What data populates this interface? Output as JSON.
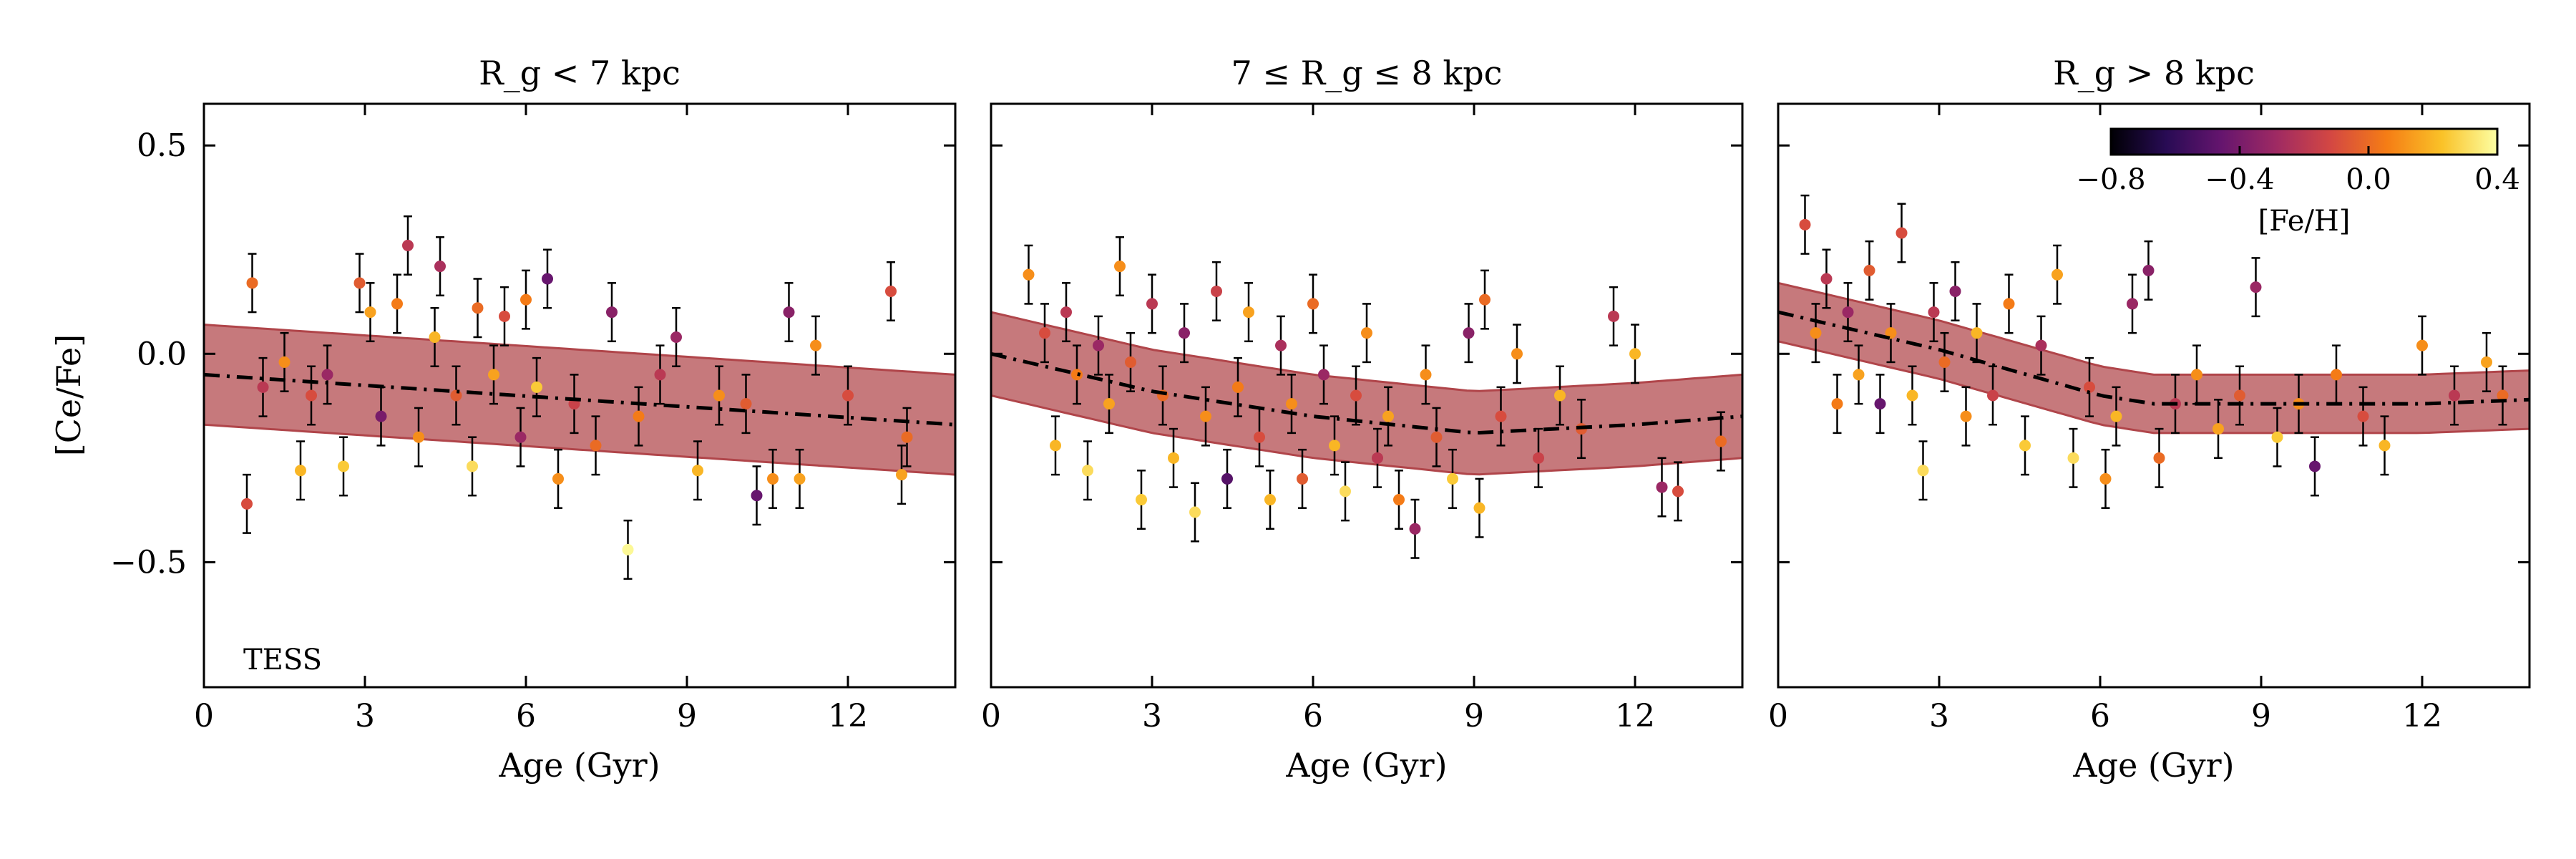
{
  "chart_data": [
    {
      "type": "scatter",
      "title": "R_g < 7 kpc",
      "xlabel": "Age (Gyr)",
      "ylabel": "[Ce/Fe]",
      "xlim": [
        0,
        14
      ],
      "ylim": [
        -0.8,
        0.6
      ],
      "xticks": [
        "0",
        "3",
        "6",
        "9",
        "12"
      ],
      "yticks": [
        "0.5",
        "0.0",
        "−0.5"
      ],
      "annotation": "TESS",
      "trend": {
        "x": [
          0,
          14
        ],
        "y": [
          -0.05,
          -0.17
        ],
        "band_width": 0.12
      },
      "points": [
        {
          "age": 0.8,
          "cefe": -0.36,
          "feh": -0.1
        },
        {
          "age": 0.9,
          "cefe": 0.17,
          "feh": 0.0
        },
        {
          "age": 1.1,
          "cefe": -0.08,
          "feh": -0.2
        },
        {
          "age": 1.5,
          "cefe": -0.02,
          "feh": 0.1
        },
        {
          "age": 1.8,
          "cefe": -0.28,
          "feh": 0.2
        },
        {
          "age": 2.0,
          "cefe": -0.1,
          "feh": -0.1
        },
        {
          "age": 2.3,
          "cefe": -0.05,
          "feh": -0.3
        },
        {
          "age": 2.6,
          "cefe": -0.27,
          "feh": 0.25
        },
        {
          "age": 2.9,
          "cefe": 0.17,
          "feh": -0.05
        },
        {
          "age": 3.1,
          "cefe": 0.1,
          "feh": 0.15
        },
        {
          "age": 3.3,
          "cefe": -0.15,
          "feh": -0.4
        },
        {
          "age": 3.6,
          "cefe": 0.12,
          "feh": 0.05
        },
        {
          "age": 3.8,
          "cefe": 0.26,
          "feh": -0.2
        },
        {
          "age": 4.0,
          "cefe": -0.2,
          "feh": 0.1
        },
        {
          "age": 4.3,
          "cefe": 0.04,
          "feh": 0.2
        },
        {
          "age": 4.4,
          "cefe": 0.21,
          "feh": -0.25
        },
        {
          "age": 4.7,
          "cefe": -0.1,
          "feh": -0.05
        },
        {
          "age": 5.0,
          "cefe": -0.27,
          "feh": 0.3
        },
        {
          "age": 5.1,
          "cefe": 0.11,
          "feh": 0.0
        },
        {
          "age": 5.4,
          "cefe": -0.05,
          "feh": 0.15
        },
        {
          "age": 5.6,
          "cefe": 0.09,
          "feh": -0.1
        },
        {
          "age": 5.9,
          "cefe": -0.2,
          "feh": -0.3
        },
        {
          "age": 6.0,
          "cefe": 0.13,
          "feh": 0.05
        },
        {
          "age": 6.2,
          "cefe": -0.08,
          "feh": 0.25
        },
        {
          "age": 6.4,
          "cefe": 0.18,
          "feh": -0.45
        },
        {
          "age": 6.6,
          "cefe": -0.3,
          "feh": 0.1
        },
        {
          "age": 6.9,
          "cefe": -0.12,
          "feh": -0.15
        },
        {
          "age": 7.3,
          "cefe": -0.22,
          "feh": 0.0
        },
        {
          "age": 7.6,
          "cefe": 0.1,
          "feh": -0.35
        },
        {
          "age": 7.9,
          "cefe": -0.47,
          "feh": 0.38
        },
        {
          "age": 8.1,
          "cefe": -0.15,
          "feh": 0.05
        },
        {
          "age": 8.5,
          "cefe": -0.05,
          "feh": -0.2
        },
        {
          "age": 8.8,
          "cefe": 0.04,
          "feh": -0.3
        },
        {
          "age": 9.2,
          "cefe": -0.28,
          "feh": 0.2
        },
        {
          "age": 9.6,
          "cefe": -0.1,
          "feh": 0.1
        },
        {
          "age": 10.1,
          "cefe": -0.12,
          "feh": -0.05
        },
        {
          "age": 10.3,
          "cefe": -0.34,
          "feh": -0.45
        },
        {
          "age": 10.6,
          "cefe": -0.3,
          "feh": 0.1
        },
        {
          "age": 10.9,
          "cefe": 0.1,
          "feh": -0.35
        },
        {
          "age": 11.1,
          "cefe": -0.3,
          "feh": 0.15
        },
        {
          "age": 11.4,
          "cefe": 0.02,
          "feh": 0.1
        },
        {
          "age": 12.0,
          "cefe": -0.1,
          "feh": -0.1
        },
        {
          "age": 12.8,
          "cefe": 0.15,
          "feh": -0.1
        },
        {
          "age": 13.0,
          "cefe": -0.29,
          "feh": 0.15
        },
        {
          "age": 13.1,
          "cefe": -0.2,
          "feh": 0.0
        }
      ]
    },
    {
      "type": "scatter",
      "title": "7 ≤ R_g ≤ 8 kpc",
      "xlabel": "Age (Gyr)",
      "ylabel": "",
      "xlim": [
        0,
        14
      ],
      "ylim": [
        -0.8,
        0.6
      ],
      "xticks": [
        "0",
        "3",
        "6",
        "9",
        "12"
      ],
      "trend": {
        "x": [
          0,
          3,
          6,
          9,
          12,
          14
        ],
        "y": [
          0.0,
          -0.09,
          -0.15,
          -0.19,
          -0.17,
          -0.15
        ],
        "band_width": 0.1
      },
      "points": [
        {
          "age": 0.7,
          "cefe": 0.19,
          "feh": 0.1
        },
        {
          "age": 1.0,
          "cefe": 0.05,
          "feh": -0.1
        },
        {
          "age": 1.2,
          "cefe": -0.22,
          "feh": 0.2
        },
        {
          "age": 1.4,
          "cefe": 0.1,
          "feh": -0.2
        },
        {
          "age": 1.6,
          "cefe": -0.05,
          "feh": 0.05
        },
        {
          "age": 1.8,
          "cefe": -0.28,
          "feh": 0.3
        },
        {
          "age": 2.0,
          "cefe": 0.02,
          "feh": -0.3
        },
        {
          "age": 2.2,
          "cefe": -0.12,
          "feh": 0.15
        },
        {
          "age": 2.4,
          "cefe": 0.21,
          "feh": 0.1
        },
        {
          "age": 2.6,
          "cefe": -0.02,
          "feh": -0.05
        },
        {
          "age": 2.8,
          "cefe": -0.35,
          "feh": 0.25
        },
        {
          "age": 3.0,
          "cefe": 0.12,
          "feh": -0.2
        },
        {
          "age": 3.2,
          "cefe": -0.1,
          "feh": 0.0
        },
        {
          "age": 3.4,
          "cefe": -0.25,
          "feh": 0.2
        },
        {
          "age": 3.6,
          "cefe": 0.05,
          "feh": -0.35
        },
        {
          "age": 3.8,
          "cefe": -0.38,
          "feh": 0.3
        },
        {
          "age": 4.0,
          "cefe": -0.15,
          "feh": 0.1
        },
        {
          "age": 4.2,
          "cefe": 0.15,
          "feh": -0.15
        },
        {
          "age": 4.4,
          "cefe": -0.3,
          "feh": -0.5
        },
        {
          "age": 4.6,
          "cefe": -0.08,
          "feh": 0.05
        },
        {
          "age": 4.8,
          "cefe": 0.1,
          "feh": 0.15
        },
        {
          "age": 5.0,
          "cefe": -0.2,
          "feh": -0.1
        },
        {
          "age": 5.2,
          "cefe": -0.35,
          "feh": 0.2
        },
        {
          "age": 5.4,
          "cefe": 0.02,
          "feh": -0.25
        },
        {
          "age": 5.6,
          "cefe": -0.12,
          "feh": 0.1
        },
        {
          "age": 5.8,
          "cefe": -0.3,
          "feh": -0.05
        },
        {
          "age": 6.0,
          "cefe": 0.12,
          "feh": 0.0
        },
        {
          "age": 6.2,
          "cefe": -0.05,
          "feh": -0.3
        },
        {
          "age": 6.4,
          "cefe": -0.22,
          "feh": 0.2
        },
        {
          "age": 6.6,
          "cefe": -0.33,
          "feh": 0.3
        },
        {
          "age": 6.8,
          "cefe": -0.1,
          "feh": -0.1
        },
        {
          "age": 7.0,
          "cefe": 0.05,
          "feh": 0.1
        },
        {
          "age": 7.2,
          "cefe": -0.25,
          "feh": -0.2
        },
        {
          "age": 7.4,
          "cefe": -0.15,
          "feh": 0.15
        },
        {
          "age": 7.6,
          "cefe": -0.35,
          "feh": 0.05
        },
        {
          "age": 7.9,
          "cefe": -0.42,
          "feh": -0.3
        },
        {
          "age": 8.1,
          "cefe": -0.05,
          "feh": 0.1
        },
        {
          "age": 8.3,
          "cefe": -0.2,
          "feh": -0.05
        },
        {
          "age": 8.6,
          "cefe": -0.3,
          "feh": 0.25
        },
        {
          "age": 8.9,
          "cefe": 0.05,
          "feh": -0.35
        },
        {
          "age": 9.1,
          "cefe": -0.37,
          "feh": 0.2
        },
        {
          "age": 9.2,
          "cefe": 0.13,
          "feh": 0.0
        },
        {
          "age": 9.5,
          "cefe": -0.15,
          "feh": -0.1
        },
        {
          "age": 9.8,
          "cefe": 0.0,
          "feh": 0.1
        },
        {
          "age": 10.2,
          "cefe": -0.25,
          "feh": -0.15
        },
        {
          "age": 10.6,
          "cefe": -0.1,
          "feh": 0.2
        },
        {
          "age": 11.0,
          "cefe": -0.18,
          "feh": -0.05
        },
        {
          "age": 11.6,
          "cefe": 0.09,
          "feh": -0.2
        },
        {
          "age": 12.0,
          "cefe": 0.0,
          "feh": 0.2
        },
        {
          "age": 12.5,
          "cefe": -0.32,
          "feh": -0.3
        },
        {
          "age": 12.8,
          "cefe": -0.33,
          "feh": -0.1
        },
        {
          "age": 13.6,
          "cefe": -0.21,
          "feh": 0.0
        }
      ]
    },
    {
      "type": "scatter",
      "title": "R_g > 8 kpc",
      "xlabel": "Age (Gyr)",
      "ylabel": "",
      "xlim": [
        0,
        14
      ],
      "ylim": [
        -0.8,
        0.6
      ],
      "xticks": [
        "0",
        "3",
        "6",
        "9",
        "12"
      ],
      "trend": {
        "x": [
          0,
          3,
          6,
          7,
          9,
          12,
          14
        ],
        "y": [
          0.1,
          0.01,
          -0.1,
          -0.12,
          -0.12,
          -0.12,
          -0.11
        ],
        "band_width": 0.07
      },
      "points": [
        {
          "age": 0.5,
          "cefe": 0.31,
          "feh": -0.1
        },
        {
          "age": 0.7,
          "cefe": 0.05,
          "feh": 0.1
        },
        {
          "age": 0.9,
          "cefe": 0.18,
          "feh": -0.2
        },
        {
          "age": 1.1,
          "cefe": -0.12,
          "feh": 0.05
        },
        {
          "age": 1.3,
          "cefe": 0.1,
          "feh": -0.3
        },
        {
          "age": 1.5,
          "cefe": -0.05,
          "feh": 0.15
        },
        {
          "age": 1.7,
          "cefe": 0.2,
          "feh": -0.05
        },
        {
          "age": 1.9,
          "cefe": -0.12,
          "feh": -0.45
        },
        {
          "age": 2.1,
          "cefe": 0.05,
          "feh": 0.1
        },
        {
          "age": 2.3,
          "cefe": 0.29,
          "feh": -0.1
        },
        {
          "age": 2.5,
          "cefe": -0.1,
          "feh": 0.2
        },
        {
          "age": 2.7,
          "cefe": -0.28,
          "feh": 0.3
        },
        {
          "age": 2.9,
          "cefe": 0.1,
          "feh": -0.2
        },
        {
          "age": 3.1,
          "cefe": -0.02,
          "feh": 0.0
        },
        {
          "age": 3.3,
          "cefe": 0.15,
          "feh": -0.35
        },
        {
          "age": 3.5,
          "cefe": -0.15,
          "feh": 0.1
        },
        {
          "age": 3.7,
          "cefe": 0.05,
          "feh": 0.2
        },
        {
          "age": 4.0,
          "cefe": -0.1,
          "feh": -0.15
        },
        {
          "age": 4.3,
          "cefe": 0.12,
          "feh": 0.05
        },
        {
          "age": 4.6,
          "cefe": -0.22,
          "feh": 0.25
        },
        {
          "age": 4.9,
          "cefe": 0.02,
          "feh": -0.25
        },
        {
          "age": 5.2,
          "cefe": 0.19,
          "feh": 0.15
        },
        {
          "age": 5.5,
          "cefe": -0.25,
          "feh": 0.3
        },
        {
          "age": 5.8,
          "cefe": -0.08,
          "feh": -0.1
        },
        {
          "age": 6.1,
          "cefe": -0.3,
          "feh": 0.1
        },
        {
          "age": 6.3,
          "cefe": -0.15,
          "feh": 0.2
        },
        {
          "age": 6.6,
          "cefe": 0.12,
          "feh": -0.3
        },
        {
          "age": 6.9,
          "cefe": 0.2,
          "feh": -0.35
        },
        {
          "age": 7.1,
          "cefe": -0.25,
          "feh": 0.0
        },
        {
          "age": 7.4,
          "cefe": -0.12,
          "feh": -0.2
        },
        {
          "age": 7.8,
          "cefe": -0.05,
          "feh": 0.1
        },
        {
          "age": 8.2,
          "cefe": -0.18,
          "feh": 0.15
        },
        {
          "age": 8.6,
          "cefe": -0.1,
          "feh": -0.05
        },
        {
          "age": 8.9,
          "cefe": 0.16,
          "feh": -0.3
        },
        {
          "age": 9.3,
          "cefe": -0.2,
          "feh": 0.25
        },
        {
          "age": 9.7,
          "cefe": -0.12,
          "feh": 0.1
        },
        {
          "age": 10.0,
          "cefe": -0.27,
          "feh": -0.45
        },
        {
          "age": 10.4,
          "cefe": -0.05,
          "feh": 0.05
        },
        {
          "age": 10.9,
          "cefe": -0.15,
          "feh": -0.1
        },
        {
          "age": 11.3,
          "cefe": -0.22,
          "feh": 0.2
        },
        {
          "age": 12.0,
          "cefe": 0.02,
          "feh": 0.1
        },
        {
          "age": 12.6,
          "cefe": -0.1,
          "feh": -0.2
        },
        {
          "age": 13.2,
          "cefe": -0.02,
          "feh": 0.15
        },
        {
          "age": 13.5,
          "cefe": -0.1,
          "feh": 0.0
        }
      ],
      "colorbar": {
        "label": "[Fe/H]",
        "range": [
          -0.8,
          0.4
        ],
        "ticks": [
          "−0.8",
          "−0.4",
          "0.0",
          "0.4"
        ],
        "colormap": "inferno",
        "location": "top-right"
      }
    }
  ],
  "colors": {
    "band": "#b0454a",
    "band_opacity": 0.72,
    "trend_line": "#000000",
    "errorbar": "#000000",
    "inferno_stops": [
      "#000004",
      "#280b54",
      "#65156e",
      "#9f2a63",
      "#d44842",
      "#f57d15",
      "#fac228",
      "#fcffa4"
    ]
  }
}
